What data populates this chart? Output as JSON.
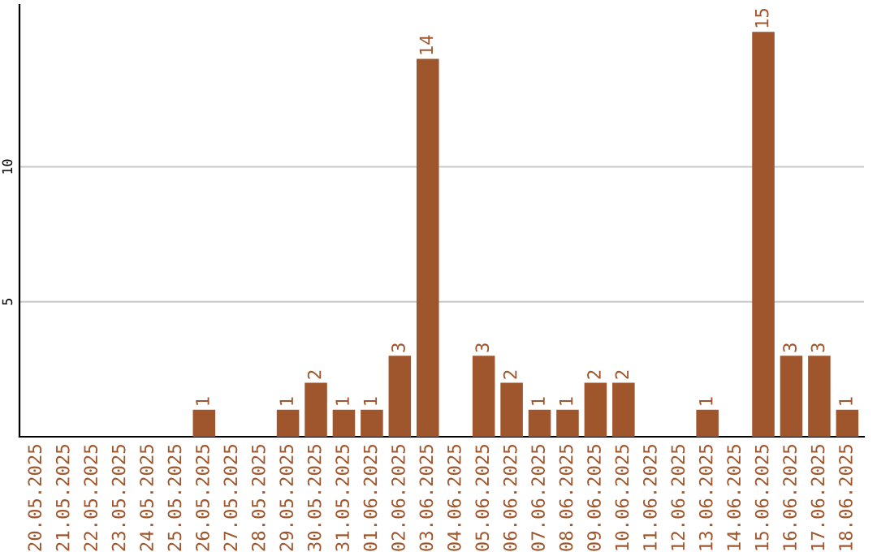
{
  "chart_data": {
    "type": "bar",
    "categories": [
      "20.05.2025",
      "21.05.2025",
      "22.05.2025",
      "23.05.2025",
      "24.05.2025",
      "25.05.2025",
      "26.05.2025",
      "27.05.2025",
      "28.05.2025",
      "29.05.2025",
      "30.05.2025",
      "31.05.2025",
      "01.06.2025",
      "02.06.2025",
      "03.06.2025",
      "04.06.2025",
      "05.06.2025",
      "06.06.2025",
      "07.06.2025",
      "08.06.2025",
      "09.06.2025",
      "10.06.2025",
      "11.06.2025",
      "12.06.2025",
      "13.06.2025",
      "14.06.2025",
      "15.06.2025",
      "16.06.2025",
      "17.06.2025",
      "18.06.2025"
    ],
    "values": [
      0,
      0,
      0,
      0,
      0,
      0,
      1,
      0,
      0,
      1,
      2,
      1,
      1,
      3,
      14,
      0,
      3,
      2,
      1,
      1,
      2,
      2,
      0,
      0,
      1,
      0,
      15,
      3,
      3,
      1
    ],
    "value_labels": [
      null,
      null,
      null,
      null,
      null,
      null,
      "1",
      null,
      null,
      "1",
      "2",
      "1",
      "1",
      "3",
      "14",
      null,
      "3",
      "2",
      "1",
      "1",
      "2",
      "2",
      null,
      null,
      "1",
      null,
      "15",
      "3",
      "3",
      "1"
    ],
    "color": "#a0562c",
    "ylim": [
      0,
      16
    ],
    "yticks": [
      5,
      10
    ],
    "grid": "y"
  }
}
